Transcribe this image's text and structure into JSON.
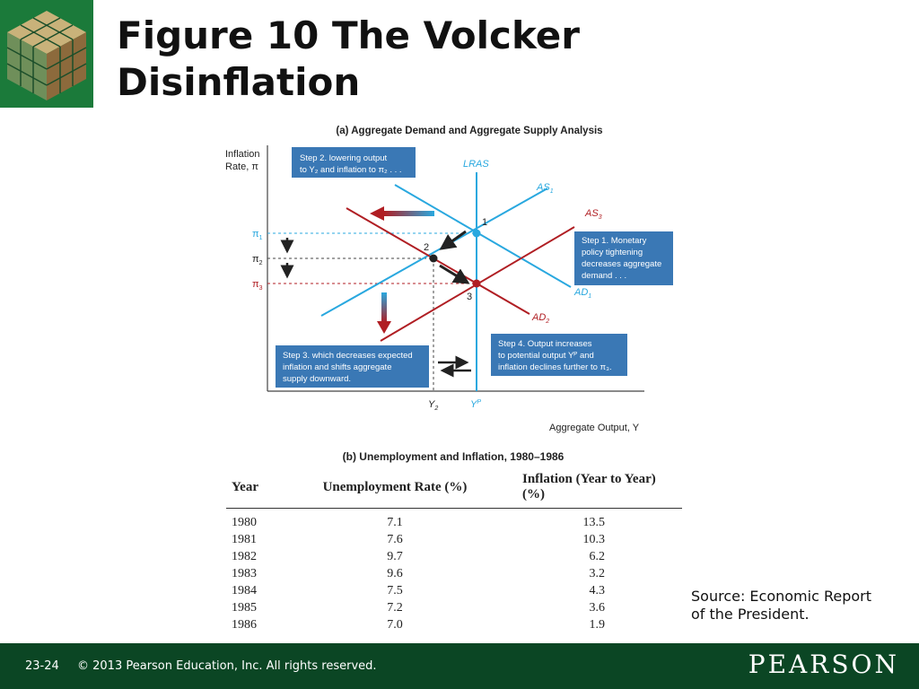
{
  "title": {
    "line1": "Figure 10  The Volcker",
    "line2": "Disinflation"
  },
  "panel_a": {
    "title": "(a) Aggregate Demand and Aggregate Supply Analysis",
    "y_axis_label_1": "Inflation",
    "y_axis_label_2": "Rate, π",
    "x_axis_label": "Aggregate Output, Y",
    "curves": {
      "lras": "LRAS",
      "as1": "AS",
      "as1_sub": "1",
      "as3": "AS",
      "as3_sub": "3",
      "ad1": "AD",
      "ad1_sub": "1",
      "ad2": "AD",
      "ad2_sub": "2"
    },
    "points": {
      "p1": "1",
      "p2": "2",
      "p3": "3"
    },
    "y_ticks": [
      {
        "sym": "π",
        "sub": "1"
      },
      {
        "sym": "π",
        "sub": "2"
      },
      {
        "sym": "π",
        "sub": "3"
      }
    ],
    "x_ticks": {
      "y2": "Y",
      "y2_sub": "2",
      "yp": "Y",
      "yp_sup": "P"
    },
    "steps": {
      "step2": [
        "Step 2. lowering output",
        "to Y₂ and inflation to π₂ . . ."
      ],
      "step1": [
        "Step 1. Monetary",
        "policy tightening",
        "decreases aggregate",
        "demand . . ."
      ],
      "step3": [
        "Step 3. which decreases expected",
        "inflation and shifts aggregate",
        "supply downward."
      ],
      "step4": [
        "Step 4. Output increases",
        "to potential output Yᴾ and",
        "inflation declines further to π₃."
      ]
    },
    "colors": {
      "blue": "#29a8df",
      "red": "#b01e23",
      "box": "#3a78b5",
      "dashed_blue": "#29a8df",
      "dashed_red": "#b01e23"
    }
  },
  "panel_b": {
    "title": "(b) Unemployment and Inflation, 1980–1986",
    "headers": [
      "Year",
      "Unemployment Rate (%)",
      "Inflation (Year to Year) (%)"
    ],
    "rows": [
      [
        "1980",
        "7.1",
        "13.5"
      ],
      [
        "1981",
        "7.6",
        "10.3"
      ],
      [
        "1982",
        "9.7",
        "6.2"
      ],
      [
        "1983",
        "9.6",
        "3.2"
      ],
      [
        "1984",
        "7.5",
        "4.3"
      ],
      [
        "1985",
        "7.2",
        "3.6"
      ],
      [
        "1986",
        "7.0",
        "1.9"
      ]
    ]
  },
  "source": {
    "line1": "Source: Economic Report",
    "line2": "of the President."
  },
  "footer": {
    "page": "23-24",
    "copyright": "© 2013 Pearson Education, Inc. All rights reserved.",
    "brand": "PEARSON"
  }
}
